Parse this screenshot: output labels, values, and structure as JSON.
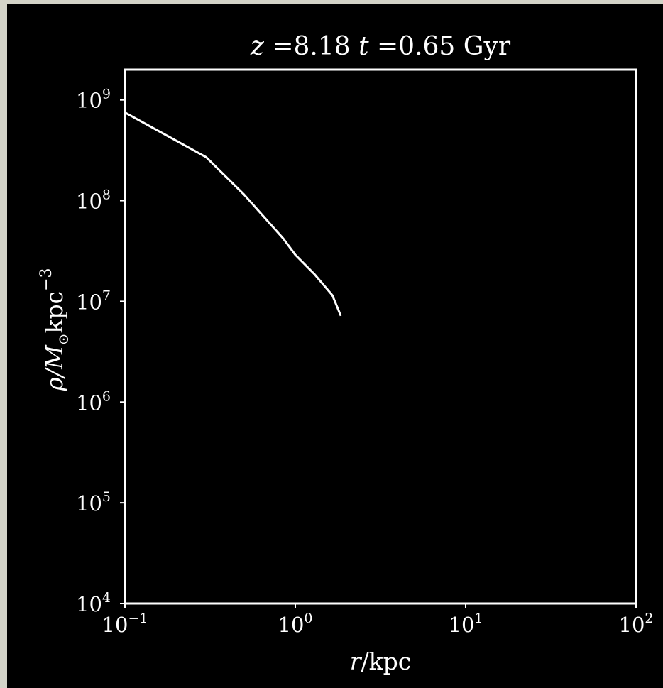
{
  "chart_data": {
    "type": "line",
    "title": {
      "z_symbol": "z",
      "z_value": "8.18",
      "t_symbol": "t",
      "t_value": "0.65",
      "t_unit": "Gyr"
    },
    "xlabel": {
      "symbol": "r",
      "unit": "/kpc"
    },
    "ylabel": {
      "symbol": "ρ",
      "mass": "/M",
      "sun": "⊙",
      "unit": "kpc",
      "exponent": "−3"
    },
    "xscale": "log",
    "yscale": "log",
    "xlim": [
      0.1,
      100
    ],
    "ylim": [
      10000,
      2000000000
    ],
    "xticks": [
      {
        "value": 0.1,
        "base": "10",
        "exp": "−1"
      },
      {
        "value": 1,
        "base": "10",
        "exp": "0"
      },
      {
        "value": 10,
        "base": "10",
        "exp": "1"
      },
      {
        "value": 100,
        "base": "10",
        "exp": "2"
      }
    ],
    "yticks": [
      {
        "value": 10000,
        "base": "10",
        "exp": "4"
      },
      {
        "value": 100000,
        "base": "10",
        "exp": "5"
      },
      {
        "value": 1000000,
        "base": "10",
        "exp": "6"
      },
      {
        "value": 10000000,
        "base": "10",
        "exp": "7"
      },
      {
        "value": 100000000,
        "base": "10",
        "exp": "8"
      },
      {
        "value": 1000000000,
        "base": "10",
        "exp": "9"
      }
    ],
    "grid": false,
    "colors": {
      "background": "#000000",
      "line": "#ffffff",
      "axes": "#ffffff",
      "text": "#ffffff"
    },
    "series": [
      {
        "x": [
          0.1,
          0.3,
          0.5,
          0.85,
          1.0,
          1.3,
          1.65,
          1.85
        ],
        "y": [
          750000000,
          270000000,
          115000000,
          42000000,
          29000000,
          18500000,
          11500000,
          7200000
        ]
      }
    ]
  }
}
